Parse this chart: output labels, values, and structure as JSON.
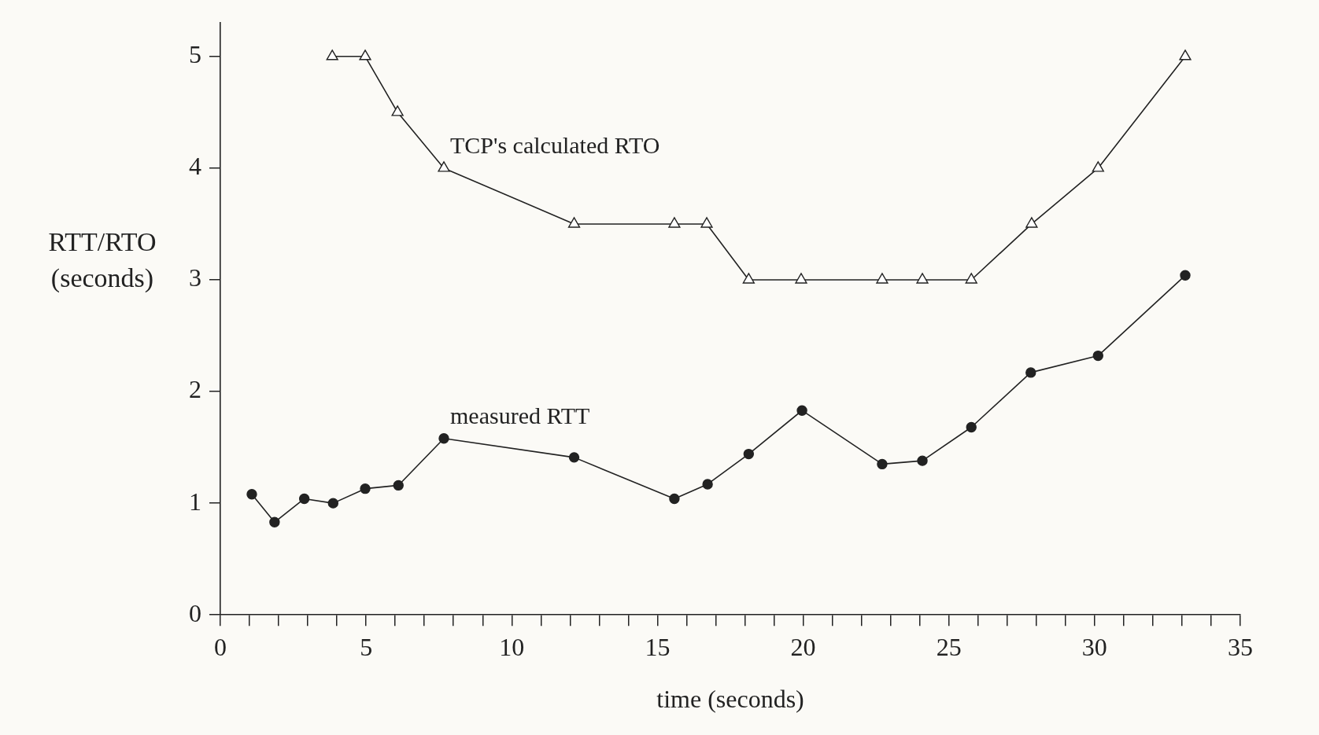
{
  "chart_data": {
    "type": "line",
    "xlabel": "time (seconds)",
    "ylabel": "RTT/RTO (seconds)",
    "xlim": [
      0,
      35
    ],
    "ylim": [
      0,
      5.3
    ],
    "xticks": [
      0,
      {
        "value": 1,
        "label": null
      },
      {
        "value": 2,
        "label": null
      },
      {
        "value": 3,
        "label": null
      },
      {
        "value": 4,
        "label": null
      },
      5,
      {
        "value": 6,
        "label": null
      },
      {
        "value": 7,
        "label": null
      },
      {
        "value": 8,
        "label": null
      },
      {
        "value": 9,
        "label": null
      },
      10,
      {
        "value": 11,
        "label": null
      },
      {
        "value": 12,
        "label": null
      },
      {
        "value": 13,
        "label": null
      },
      {
        "value": 14,
        "label": null
      },
      15,
      {
        "value": 16,
        "label": null
      },
      {
        "value": 17,
        "label": null
      },
      {
        "value": 18,
        "label": null
      },
      {
        "value": 19,
        "label": null
      },
      20,
      {
        "value": 21,
        "label": null
      },
      {
        "value": 22,
        "label": null
      },
      {
        "value": 23,
        "label": null
      },
      {
        "value": 24,
        "label": null
      },
      25,
      {
        "value": 26,
        "label": null
      },
      {
        "value": 27,
        "label": null
      },
      {
        "value": 28,
        "label": null
      },
      {
        "value": 29,
        "label": null
      },
      30,
      {
        "value": 31,
        "label": null
      },
      {
        "value": 32,
        "label": null
      },
      {
        "value": 33,
        "label": null
      },
      {
        "value": 34,
        "label": null
      },
      35
    ],
    "yticks": [
      0,
      1,
      2,
      3,
      4,
      5
    ],
    "grid": false,
    "legend": false,
    "line_style": "solid",
    "series": [
      {
        "name": "TCP's calculated RTO",
        "color": "#222222",
        "marker": "triangle",
        "x": [
          3.84,
          4.97,
          6.08,
          7.67,
          12.14,
          15.58,
          16.69,
          18.13,
          19.93,
          22.71,
          24.09,
          25.77,
          27.84,
          30.12,
          33.11
        ],
        "values": [
          5,
          5,
          4.5,
          4,
          3.5,
          3.5,
          3.5,
          3,
          3,
          3,
          3,
          3,
          3.5,
          4,
          5
        ]
      },
      {
        "name": "measured RTT",
        "color": "#222222",
        "marker": "circle",
        "x": [
          1.08,
          1.86,
          2.88,
          3.87,
          4.97,
          6.11,
          7.67,
          12.14,
          15.58,
          16.72,
          18.13,
          19.96,
          22.71,
          24.09,
          25.77,
          27.81,
          30.12,
          33.11
        ],
        "values": [
          1.08,
          0.83,
          1.04,
          1.0,
          1.13,
          1.16,
          1.58,
          1.41,
          1.04,
          1.17,
          1.44,
          1.83,
          1.35,
          1.38,
          1.68,
          2.17,
          2.32,
          3.04
        ]
      }
    ]
  }
}
